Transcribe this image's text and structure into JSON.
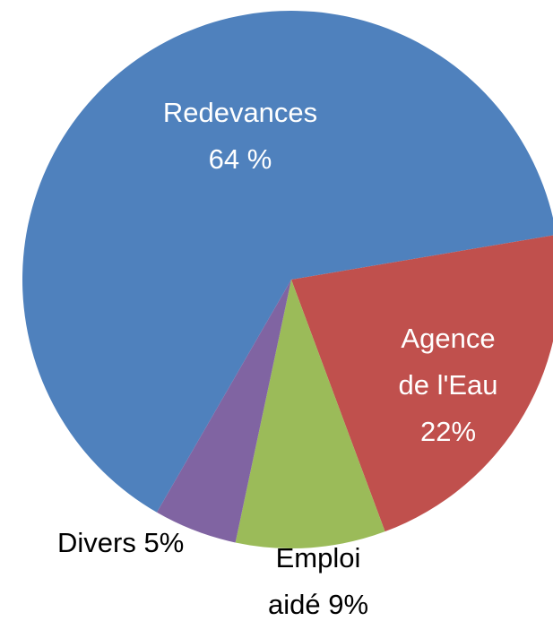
{
  "chart_data": {
    "type": "pie",
    "categories": [
      "Redevances",
      "Agence de l'Eau",
      "Emploi aidé",
      "Divers"
    ],
    "values": [
      64,
      22,
      9,
      5
    ],
    "value_labels": [
      "64 %",
      "22%",
      "9%",
      "5%"
    ],
    "colors": [
      "#4f81bd",
      "#c0504d",
      "#9bbb59",
      "#8064a2"
    ]
  }
}
